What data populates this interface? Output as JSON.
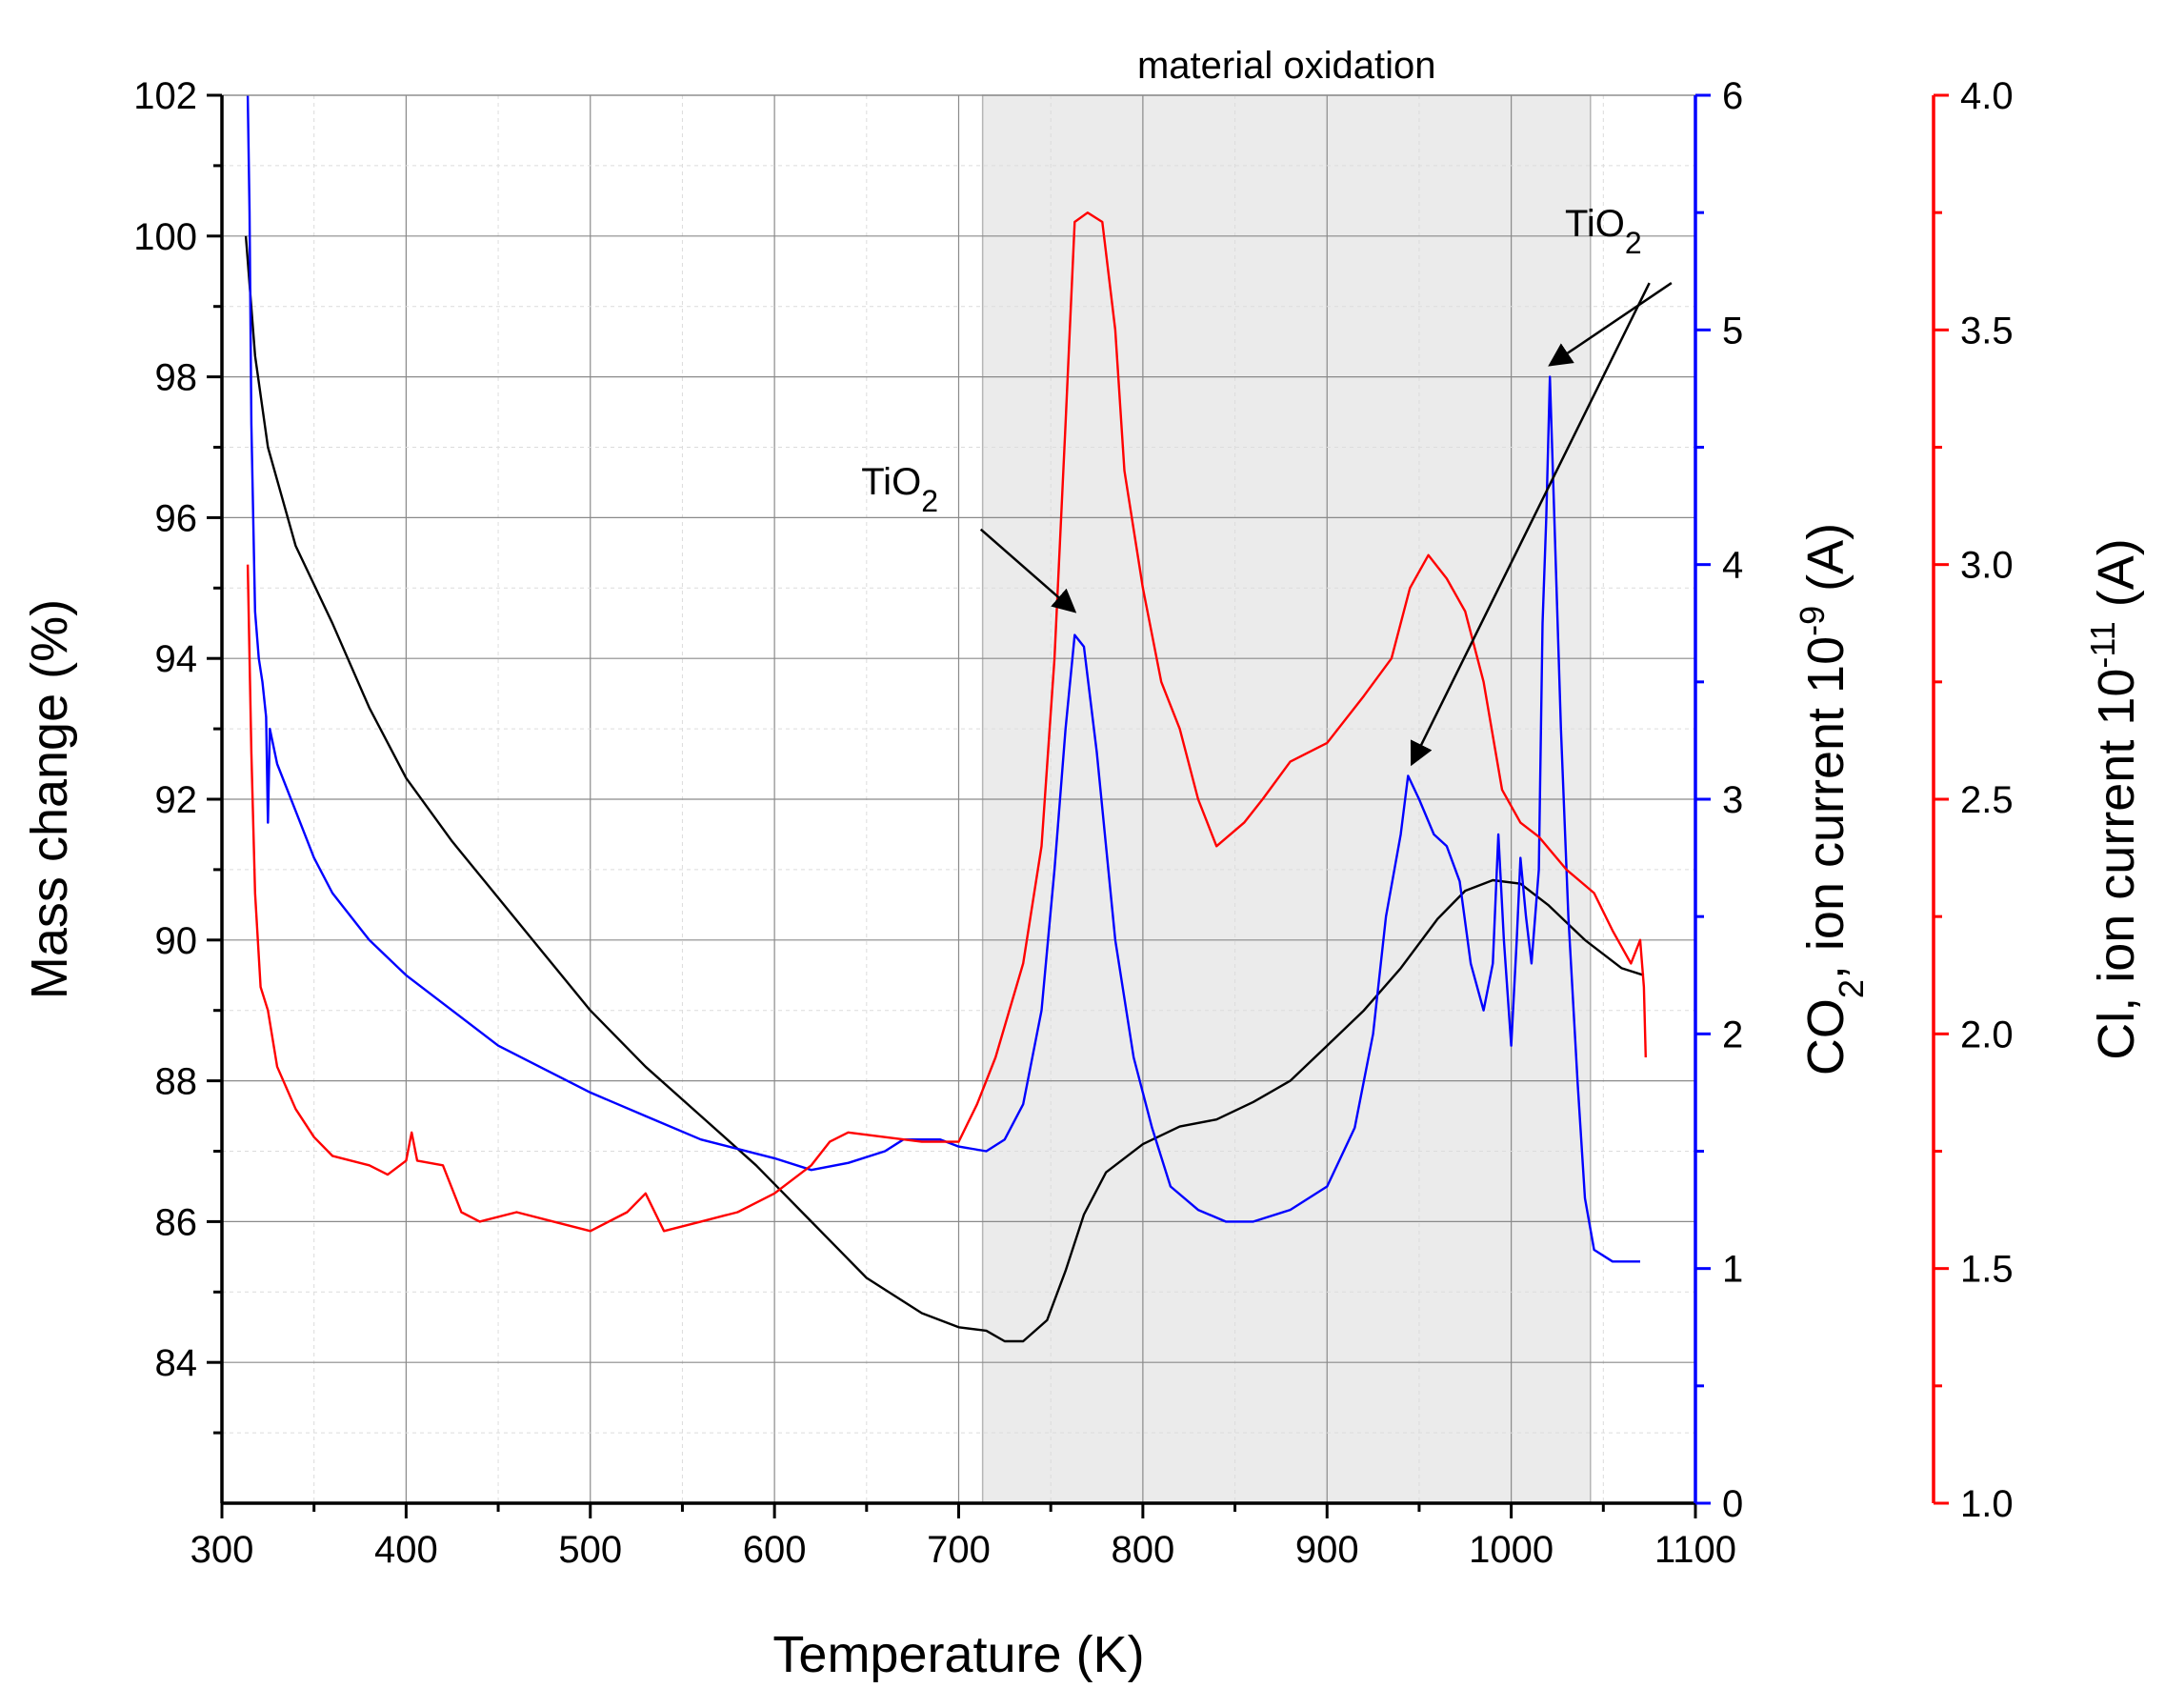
{
  "chart_data": {
    "type": "line",
    "title": "",
    "shaded_region": {
      "label": "material oxidation",
      "x_range": [
        713,
        1043
      ],
      "color": "#ebebeb"
    },
    "x_axis": {
      "label": "Temperature (K)",
      "range": [
        300,
        1100
      ],
      "ticks": [
        300,
        400,
        500,
        600,
        700,
        800,
        900,
        1000,
        1100
      ]
    },
    "y_axes": [
      {
        "id": "mass",
        "side": "left",
        "label": "Mass change (%)",
        "range": [
          82,
          102
        ],
        "ticks": [
          84,
          86,
          88,
          90,
          92,
          94,
          96,
          98,
          100,
          102
        ],
        "color": "#000000"
      },
      {
        "id": "co2",
        "side": "right",
        "label": "CO2, ion current 10-9 (A)",
        "label_parts": {
          "prefix": "CO",
          "sub": "2",
          "mid": ", ion current 10",
          "sup": "-9",
          "suffix": " (A)"
        },
        "range": [
          0,
          6
        ],
        "ticks": [
          0,
          1,
          2,
          3,
          4,
          5,
          6
        ],
        "color": "#0000ff"
      },
      {
        "id": "cl",
        "side": "right",
        "label": "Cl, ion current 10-11 (A)",
        "label_parts": {
          "prefix": "Cl, ion current 10",
          "sup": "-11",
          "suffix": " (A)"
        },
        "range": [
          1.0,
          4.0
        ],
        "ticks": [
          "1.0",
          "1.5",
          "2.0",
          "2.5",
          "3.0",
          "3.5",
          "4.0"
        ],
        "color": "#ff0000"
      }
    ],
    "series": [
      {
        "name": "Mass change",
        "axis": "mass",
        "color": "#000000",
        "points": [
          [
            313,
            100.0
          ],
          [
            318,
            98.3
          ],
          [
            325,
            97.0
          ],
          [
            340,
            95.6
          ],
          [
            360,
            94.5
          ],
          [
            380,
            93.3
          ],
          [
            400,
            92.3
          ],
          [
            425,
            91.4
          ],
          [
            450,
            90.6
          ],
          [
            475,
            89.8
          ],
          [
            500,
            89.0
          ],
          [
            530,
            88.2
          ],
          [
            560,
            87.5
          ],
          [
            590,
            86.8
          ],
          [
            620,
            86.0
          ],
          [
            650,
            85.2
          ],
          [
            680,
            84.7
          ],
          [
            700,
            84.5
          ],
          [
            715,
            84.45
          ],
          [
            725,
            84.3
          ],
          [
            735,
            84.3
          ],
          [
            748,
            84.6
          ],
          [
            758,
            85.3
          ],
          [
            768,
            86.1
          ],
          [
            780,
            86.7
          ],
          [
            800,
            87.1
          ],
          [
            820,
            87.35
          ],
          [
            840,
            87.45
          ],
          [
            860,
            87.7
          ],
          [
            880,
            88.0
          ],
          [
            900,
            88.5
          ],
          [
            920,
            89.0
          ],
          [
            940,
            89.6
          ],
          [
            960,
            90.3
          ],
          [
            975,
            90.7
          ],
          [
            990,
            90.85
          ],
          [
            1005,
            90.8
          ],
          [
            1020,
            90.5
          ],
          [
            1040,
            90.0
          ],
          [
            1060,
            89.6
          ],
          [
            1072,
            89.5
          ]
        ]
      },
      {
        "name": "CO2 ion current",
        "axis": "co2",
        "color": "#0000ff",
        "points": [
          [
            314,
            6.0
          ],
          [
            315,
            5.5
          ],
          [
            316,
            4.6
          ],
          [
            318,
            3.8
          ],
          [
            320,
            3.6
          ],
          [
            322,
            3.5
          ],
          [
            324,
            3.35
          ],
          [
            325,
            2.9
          ],
          [
            326,
            3.3
          ],
          [
            330,
            3.15
          ],
          [
            340,
            2.95
          ],
          [
            350,
            2.75
          ],
          [
            360,
            2.6
          ],
          [
            380,
            2.4
          ],
          [
            400,
            2.25
          ],
          [
            425,
            2.1
          ],
          [
            450,
            1.95
          ],
          [
            475,
            1.85
          ],
          [
            500,
            1.75
          ],
          [
            530,
            1.65
          ],
          [
            560,
            1.55
          ],
          [
            600,
            1.47
          ],
          [
            620,
            1.42
          ],
          [
            640,
            1.45
          ],
          [
            660,
            1.5
          ],
          [
            670,
            1.55
          ],
          [
            690,
            1.55
          ],
          [
            700,
            1.52
          ],
          [
            715,
            1.5
          ],
          [
            725,
            1.55
          ],
          [
            735,
            1.7
          ],
          [
            745,
            2.1
          ],
          [
            752,
            2.7
          ],
          [
            758,
            3.3
          ],
          [
            763,
            3.7
          ],
          [
            768,
            3.65
          ],
          [
            775,
            3.2
          ],
          [
            785,
            2.4
          ],
          [
            795,
            1.9
          ],
          [
            805,
            1.6
          ],
          [
            815,
            1.35
          ],
          [
            830,
            1.25
          ],
          [
            845,
            1.2
          ],
          [
            860,
            1.2
          ],
          [
            880,
            1.25
          ],
          [
            900,
            1.35
          ],
          [
            915,
            1.6
          ],
          [
            925,
            2.0
          ],
          [
            932,
            2.5
          ],
          [
            940,
            2.85
          ],
          [
            944,
            3.1
          ],
          [
            950,
            3.0
          ],
          [
            958,
            2.85
          ],
          [
            965,
            2.8
          ],
          [
            972,
            2.65
          ],
          [
            978,
            2.3
          ],
          [
            985,
            2.1
          ],
          [
            990,
            2.3
          ],
          [
            993,
            2.85
          ],
          [
            996,
            2.4
          ],
          [
            1000,
            1.95
          ],
          [
            1003,
            2.4
          ],
          [
            1005,
            2.75
          ],
          [
            1008,
            2.5
          ],
          [
            1011,
            2.3
          ],
          [
            1015,
            2.7
          ],
          [
            1017,
            3.75
          ],
          [
            1019,
            4.2
          ],
          [
            1021,
            4.8
          ],
          [
            1023,
            4.3
          ],
          [
            1027,
            3.3
          ],
          [
            1031,
            2.5
          ],
          [
            1036,
            1.8
          ],
          [
            1040,
            1.3
          ],
          [
            1045,
            1.08
          ],
          [
            1055,
            1.03
          ],
          [
            1070,
            1.03
          ]
        ]
      },
      {
        "name": "Cl ion current",
        "axis": "cl",
        "color": "#ff0000",
        "points": [
          [
            314,
            3.0
          ],
          [
            316,
            2.6
          ],
          [
            318,
            2.3
          ],
          [
            321,
            2.1
          ],
          [
            325,
            2.05
          ],
          [
            330,
            1.93
          ],
          [
            340,
            1.84
          ],
          [
            350,
            1.78
          ],
          [
            360,
            1.74
          ],
          [
            380,
            1.72
          ],
          [
            390,
            1.7
          ],
          [
            400,
            1.73
          ],
          [
            403,
            1.79
          ],
          [
            406,
            1.73
          ],
          [
            420,
            1.72
          ],
          [
            430,
            1.62
          ],
          [
            440,
            1.6
          ],
          [
            460,
            1.62
          ],
          [
            480,
            1.6
          ],
          [
            500,
            1.58
          ],
          [
            520,
            1.62
          ],
          [
            530,
            1.66
          ],
          [
            540,
            1.58
          ],
          [
            560,
            1.6
          ],
          [
            580,
            1.62
          ],
          [
            600,
            1.66
          ],
          [
            620,
            1.72
          ],
          [
            630,
            1.77
          ],
          [
            640,
            1.79
          ],
          [
            660,
            1.78
          ],
          [
            680,
            1.77
          ],
          [
            700,
            1.77
          ],
          [
            710,
            1.85
          ],
          [
            720,
            1.95
          ],
          [
            735,
            2.15
          ],
          [
            745,
            2.4
          ],
          [
            752,
            2.8
          ],
          [
            758,
            3.3
          ],
          [
            763,
            3.73
          ],
          [
            770,
            3.75
          ],
          [
            778,
            3.73
          ],
          [
            785,
            3.5
          ],
          [
            790,
            3.2
          ],
          [
            800,
            2.95
          ],
          [
            810,
            2.75
          ],
          [
            820,
            2.65
          ],
          [
            830,
            2.5
          ],
          [
            840,
            2.4
          ],
          [
            855,
            2.45
          ],
          [
            865,
            2.5
          ],
          [
            880,
            2.58
          ],
          [
            900,
            2.62
          ],
          [
            920,
            2.72
          ],
          [
            935,
            2.8
          ],
          [
            945,
            2.95
          ],
          [
            955,
            3.02
          ],
          [
            965,
            2.97
          ],
          [
            975,
            2.9
          ],
          [
            985,
            2.75
          ],
          [
            995,
            2.52
          ],
          [
            1005,
            2.45
          ],
          [
            1015,
            2.42
          ],
          [
            1030,
            2.35
          ],
          [
            1045,
            2.3
          ],
          [
            1055,
            2.22
          ],
          [
            1065,
            2.15
          ],
          [
            1070,
            2.2
          ],
          [
            1072,
            2.1
          ],
          [
            1073,
            1.95
          ]
        ]
      }
    ],
    "annotations": [
      {
        "text": "TiO",
        "sub": "2",
        "label_pos": [
          668,
          4.3
        ],
        "arrows": [
          {
            "from": [
              712,
              4.15
            ],
            "to": [
              763,
              3.8
            ]
          }
        ]
      },
      {
        "text": "TiO",
        "sub": "2",
        "label_pos": [
          1050,
          5.4
        ],
        "arrows": [
          {
            "from": [
              1075,
              5.2
            ],
            "to": [
              946,
              3.15
            ]
          },
          {
            "from": [
              1087,
              5.2
            ],
            "to": [
              1021,
              4.85
            ]
          }
        ]
      }
    ]
  }
}
